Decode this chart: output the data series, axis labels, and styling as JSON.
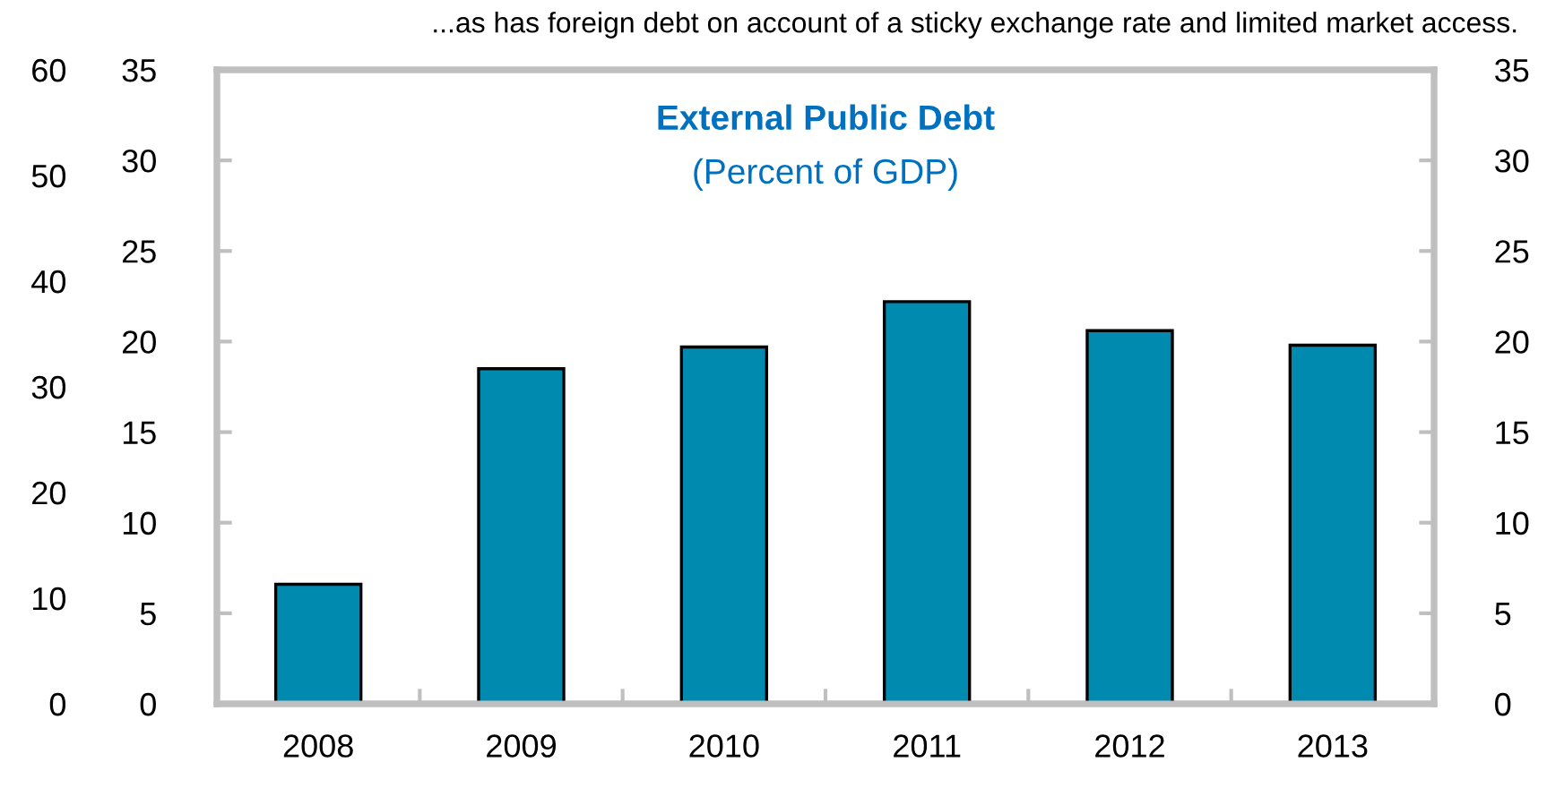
{
  "chart_data": {
    "type": "bar",
    "title": "External Public Debt",
    "subtitle": "(Percent of GDP)",
    "annotations": [
      "...as has foreign debt on account of a sticky exchange rate and limited market access."
    ],
    "categories": [
      "2008",
      "2009",
      "2010",
      "2011",
      "2012",
      "2013"
    ],
    "series": [
      {
        "color": "#008ab0",
        "values": [
          6.6,
          18.5,
          19.7,
          22.2,
          20.6,
          19.8
        ]
      }
    ],
    "ylim": [
      0,
      35
    ],
    "yticks": [
      0,
      5,
      10,
      15,
      20,
      25,
      30,
      35
    ],
    "y2lim": [
      0,
      35
    ],
    "y2ticks": [
      0,
      5,
      10,
      15,
      20,
      25,
      30,
      35
    ],
    "y3lim": [
      0,
      60
    ],
    "y3ticks": [
      0,
      10,
      20,
      30,
      40,
      50,
      60
    ],
    "grid": false,
    "legend": false
  }
}
